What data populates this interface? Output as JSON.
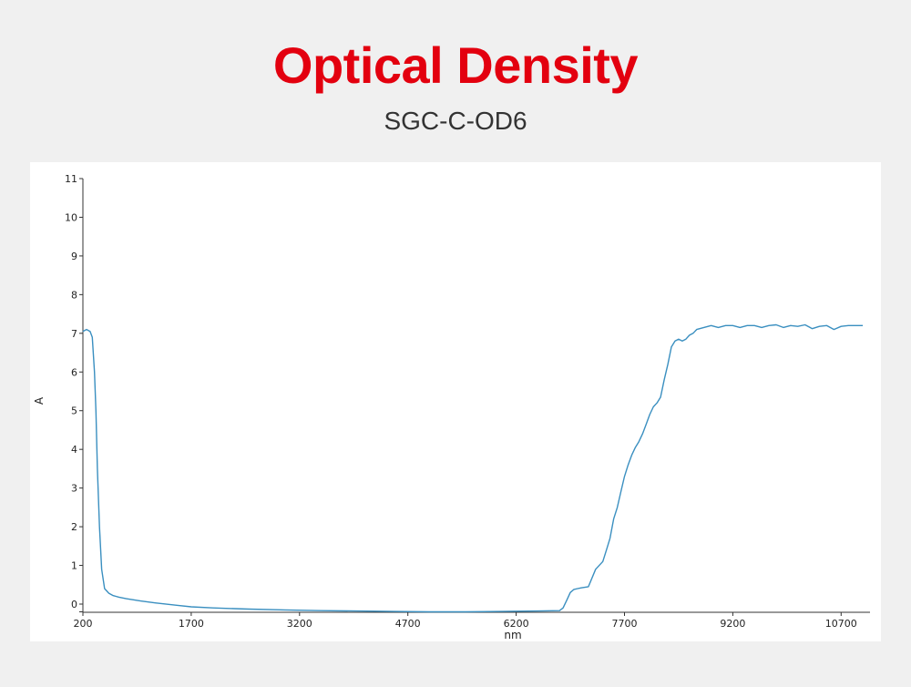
{
  "header": {
    "title": "Optical Density",
    "subtitle": "SGC-C-OD6"
  },
  "chart_data": {
    "type": "line",
    "title": "",
    "xlabel": "nm",
    "ylabel": "A",
    "xlim": [
      200,
      11100
    ],
    "ylim": [
      -0.2,
      11
    ],
    "x_ticks": [
      200,
      1700,
      3200,
      4700,
      6200,
      7700,
      9200,
      10700
    ],
    "y_ticks": [
      0,
      1,
      2,
      3,
      4,
      5,
      6,
      7,
      8,
      9,
      10,
      11
    ],
    "grid": false,
    "legend": "none",
    "line_color": "#3a8fc0",
    "series": [
      {
        "x": [
          200,
          250,
          300,
          330,
          360,
          380,
          400,
          430,
          460,
          500,
          560,
          620,
          700,
          800,
          1000,
          1200,
          1500,
          1700,
          2000,
          2500,
          3000,
          3500,
          4000,
          4500,
          5000,
          5500,
          6000,
          6500,
          6800,
          6850,
          6900,
          6950,
          7000,
          7050,
          7100,
          7200,
          7300,
          7400,
          7450,
          7500,
          7550,
          7600,
          7650,
          7700,
          7750,
          7800,
          7850,
          7900,
          7950,
          8000,
          8050,
          8100,
          8150,
          8200,
          8250,
          8300,
          8350,
          8400,
          8450,
          8500,
          8550,
          8600,
          8650,
          8700,
          8800,
          8900,
          9000,
          9100,
          9200,
          9300,
          9400,
          9500,
          9600,
          9700,
          9800,
          9900,
          10000,
          10100,
          10200,
          10300,
          10400,
          10500,
          10600,
          10700,
          10800,
          10900,
          11000
        ],
        "y": [
          7.05,
          7.1,
          7.05,
          6.9,
          6.0,
          5.0,
          3.5,
          2.0,
          0.9,
          0.4,
          0.28,
          0.22,
          0.18,
          0.14,
          0.08,
          0.03,
          -0.03,
          -0.07,
          -0.1,
          -0.13,
          -0.15,
          -0.17,
          -0.18,
          -0.19,
          -0.2,
          -0.2,
          -0.19,
          -0.18,
          -0.17,
          -0.1,
          0.1,
          0.3,
          0.38,
          0.4,
          0.42,
          0.45,
          0.9,
          1.1,
          1.4,
          1.7,
          2.2,
          2.5,
          2.9,
          3.3,
          3.6,
          3.85,
          4.05,
          4.2,
          4.4,
          4.65,
          4.9,
          5.1,
          5.2,
          5.35,
          5.8,
          6.2,
          6.65,
          6.8,
          6.85,
          6.8,
          6.85,
          6.95,
          7.0,
          7.1,
          7.15,
          7.2,
          7.15,
          7.2,
          7.2,
          7.15,
          7.2,
          7.2,
          7.15,
          7.2,
          7.22,
          7.15,
          7.2,
          7.18,
          7.22,
          7.12,
          7.18,
          7.2,
          7.1,
          7.18,
          7.2,
          7.2,
          7.2
        ]
      }
    ]
  }
}
